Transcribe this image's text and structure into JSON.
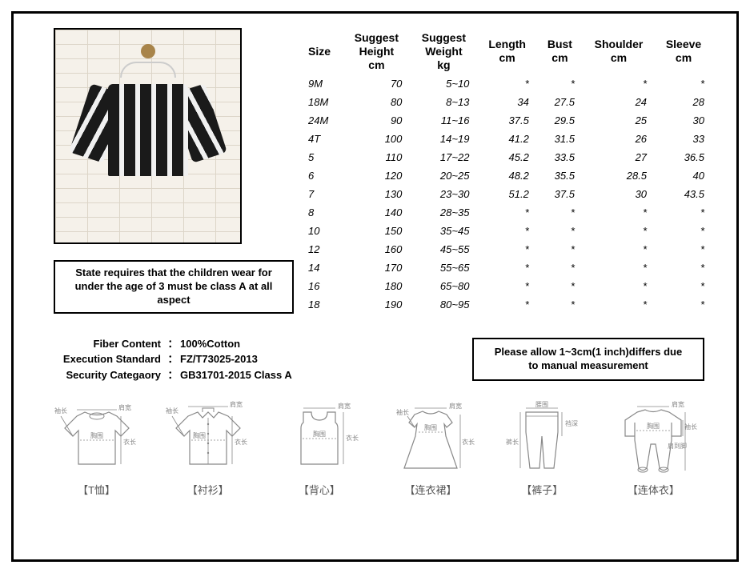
{
  "notice_text": "State requires that the children wear for under the age of 3 must be class A at all aspect",
  "measurement_notice": "Please allow 1~3cm(1 inch)differs due to manual measurement",
  "specs": {
    "fiber_label": "Fiber Content",
    "fiber_value": "100%Cotton",
    "exec_label": "Execution Standard",
    "exec_value": "FZ/T73025-2013",
    "security_label": "Security Categaory",
    "security_value": "GB31701-2015  Class A",
    "separator": "："
  },
  "table": {
    "headers": [
      {
        "l1": "Size",
        "l2": ""
      },
      {
        "l1": "Suggest",
        "l2": "Height",
        "l3": "cm"
      },
      {
        "l1": "Suggest",
        "l2": "Weight",
        "l3": "kg"
      },
      {
        "l1": "Length",
        "l2": "cm"
      },
      {
        "l1": "Bust",
        "l2": "cm"
      },
      {
        "l1": "Shoulder",
        "l2": "cm"
      },
      {
        "l1": "Sleeve",
        "l2": "cm"
      }
    ],
    "rows": [
      [
        "9M",
        "70",
        "5~10",
        "*",
        "*",
        "*",
        "*"
      ],
      [
        "18M",
        "80",
        "8~13",
        "34",
        "27.5",
        "24",
        "28"
      ],
      [
        "24M",
        "90",
        "11~16",
        "37.5",
        "29.5",
        "25",
        "30"
      ],
      [
        "4T",
        "100",
        "14~19",
        "41.2",
        "31.5",
        "26",
        "33"
      ],
      [
        "5",
        "110",
        "17~22",
        "45.2",
        "33.5",
        "27",
        "36.5"
      ],
      [
        "6",
        "120",
        "20~25",
        "48.2",
        "35.5",
        "28.5",
        "40"
      ],
      [
        "7",
        "130",
        "23~30",
        "51.2",
        "37.5",
        "30",
        "43.5"
      ],
      [
        "8",
        "140",
        "28~35",
        "*",
        "*",
        "*",
        "*"
      ],
      [
        "10",
        "150",
        "35~45",
        "*",
        "*",
        "*",
        "*"
      ],
      [
        "12",
        "160",
        "45~55",
        "*",
        "*",
        "*",
        "*"
      ],
      [
        "14",
        "170",
        "55~65",
        "*",
        "*",
        "*",
        "*"
      ],
      [
        "16",
        "180",
        "65~80",
        "*",
        "*",
        "*",
        "*"
      ],
      [
        "18",
        "190",
        "80~95",
        "*",
        "*",
        "*",
        "*"
      ]
    ]
  },
  "diagrams": {
    "items": [
      {
        "label": "【T恤】",
        "type": "tshirt"
      },
      {
        "label": "【衬衫】",
        "type": "shirt"
      },
      {
        "label": "【背心】",
        "type": "vest"
      },
      {
        "label": "【连衣裙】",
        "type": "dress"
      },
      {
        "label": "【裤子】",
        "type": "pants"
      },
      {
        "label": "【连体衣】",
        "type": "onesie"
      }
    ],
    "annot": {
      "shoulder": "肩宽",
      "sleeve": "袖长",
      "bust": "胸围",
      "length": "衣长",
      "waist": "腰围",
      "hip": "裆深",
      "pantlen": "裤长",
      "bodylen": "肩到脚"
    }
  },
  "colors": {
    "border": "#000000",
    "bg": "#ffffff",
    "diagram_stroke": "#888888",
    "diagram_text": "#888888"
  }
}
